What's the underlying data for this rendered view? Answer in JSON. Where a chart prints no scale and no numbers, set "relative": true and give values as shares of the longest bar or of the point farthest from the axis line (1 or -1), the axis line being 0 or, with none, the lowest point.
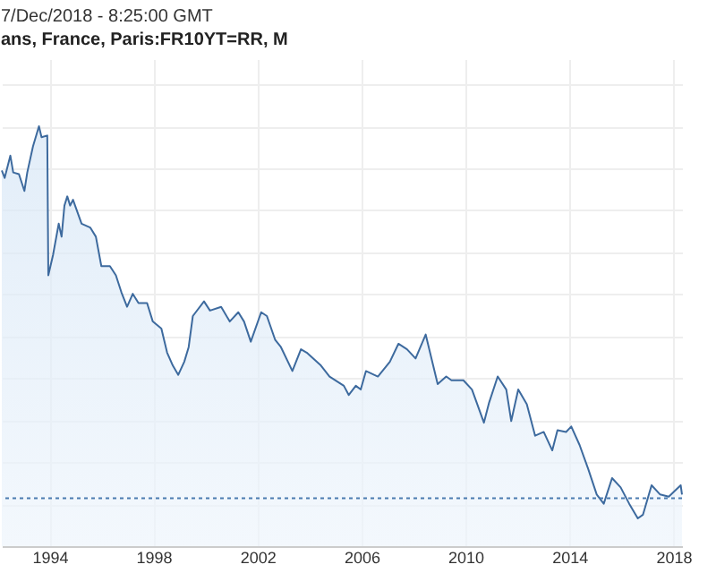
{
  "chart_data": {
    "type": "area",
    "relative": true,
    "title": "ans, France, Paris:FR10YT=RR, M",
    "annotations": [
      "7/Dec/2018 - 8:25:00 GMT"
    ],
    "xlim": [
      1992.16,
      2018.33
    ],
    "xticks": [
      1994,
      1998,
      2002,
      2006,
      2010,
      2014,
      2018
    ],
    "grid": true,
    "series": [
      {
        "color": "#3d6a9e",
        "x": [
          1992.16,
          1992.27,
          1992.49,
          1992.6,
          1992.82,
          1993.03,
          1993.14,
          1993.36,
          1993.59,
          1993.69,
          1993.91,
          1993.95,
          1994.13,
          1994.35,
          1994.46,
          1994.57,
          1994.68,
          1994.79,
          1994.9,
          1995.23,
          1995.56,
          1995.78,
          1995.99,
          1996.32,
          1996.55,
          1996.76,
          1996.98,
          1997.2,
          1997.42,
          1997.75,
          1997.97,
          1998.3,
          1998.52,
          1998.74,
          1998.95,
          1999.18,
          1999.35,
          1999.51,
          1999.94,
          2000.17,
          2000.6,
          2000.93,
          2001.26,
          2001.48,
          2001.74,
          2002.14,
          2002.36,
          2002.68,
          2002.9,
          2003.34,
          2003.67,
          2003.89,
          2004.44,
          2004.77,
          2005.32,
          2005.51,
          2005.78,
          2005.97,
          2006.17,
          2006.63,
          2007.09,
          2007.42,
          2007.75,
          2008.08,
          2008.47,
          2008.93,
          2009.26,
          2009.46,
          2009.92,
          2010.25,
          2010.71,
          2010.91,
          2011.24,
          2011.57,
          2011.76,
          2012.03,
          2012.36,
          2012.68,
          2013.01,
          2013.34,
          2013.54,
          2013.87,
          2014.07,
          2014.39,
          2014.72,
          2015.05,
          2015.32,
          2015.64,
          2015.97,
          2016.3,
          2016.63,
          2016.83,
          2017.16,
          2017.49,
          2017.82,
          2018.28,
          2018.33
        ],
        "values": [
          0.895,
          0.877,
          0.93,
          0.89,
          0.886,
          0.846,
          0.89,
          0.952,
          1.0,
          0.974,
          0.978,
          0.645,
          0.693,
          0.768,
          0.737,
          0.811,
          0.833,
          0.811,
          0.825,
          0.768,
          0.759,
          0.737,
          0.667,
          0.667,
          0.645,
          0.605,
          0.57,
          0.601,
          0.579,
          0.579,
          0.535,
          0.518,
          0.461,
          0.43,
          0.408,
          0.439,
          0.474,
          0.548,
          0.583,
          0.561,
          0.57,
          0.535,
          0.557,
          0.535,
          0.487,
          0.557,
          0.548,
          0.491,
          0.474,
          0.417,
          0.469,
          0.461,
          0.43,
          0.404,
          0.382,
          0.36,
          0.382,
          0.373,
          0.417,
          0.404,
          0.439,
          0.482,
          0.469,
          0.447,
          0.504,
          0.386,
          0.404,
          0.395,
          0.395,
          0.373,
          0.294,
          0.342,
          0.404,
          0.373,
          0.298,
          0.373,
          0.338,
          0.263,
          0.272,
          0.228,
          0.276,
          0.272,
          0.285,
          0.241,
          0.184,
          0.123,
          0.101,
          0.162,
          0.14,
          0.101,
          0.066,
          0.075,
          0.145,
          0.123,
          0.118,
          0.145,
          0.123
        ]
      }
    ],
    "ref_lines": [
      {
        "axis": "y",
        "value": 0.114,
        "color": "#4a7bb0",
        "line_style": "dotted"
      }
    ]
  }
}
